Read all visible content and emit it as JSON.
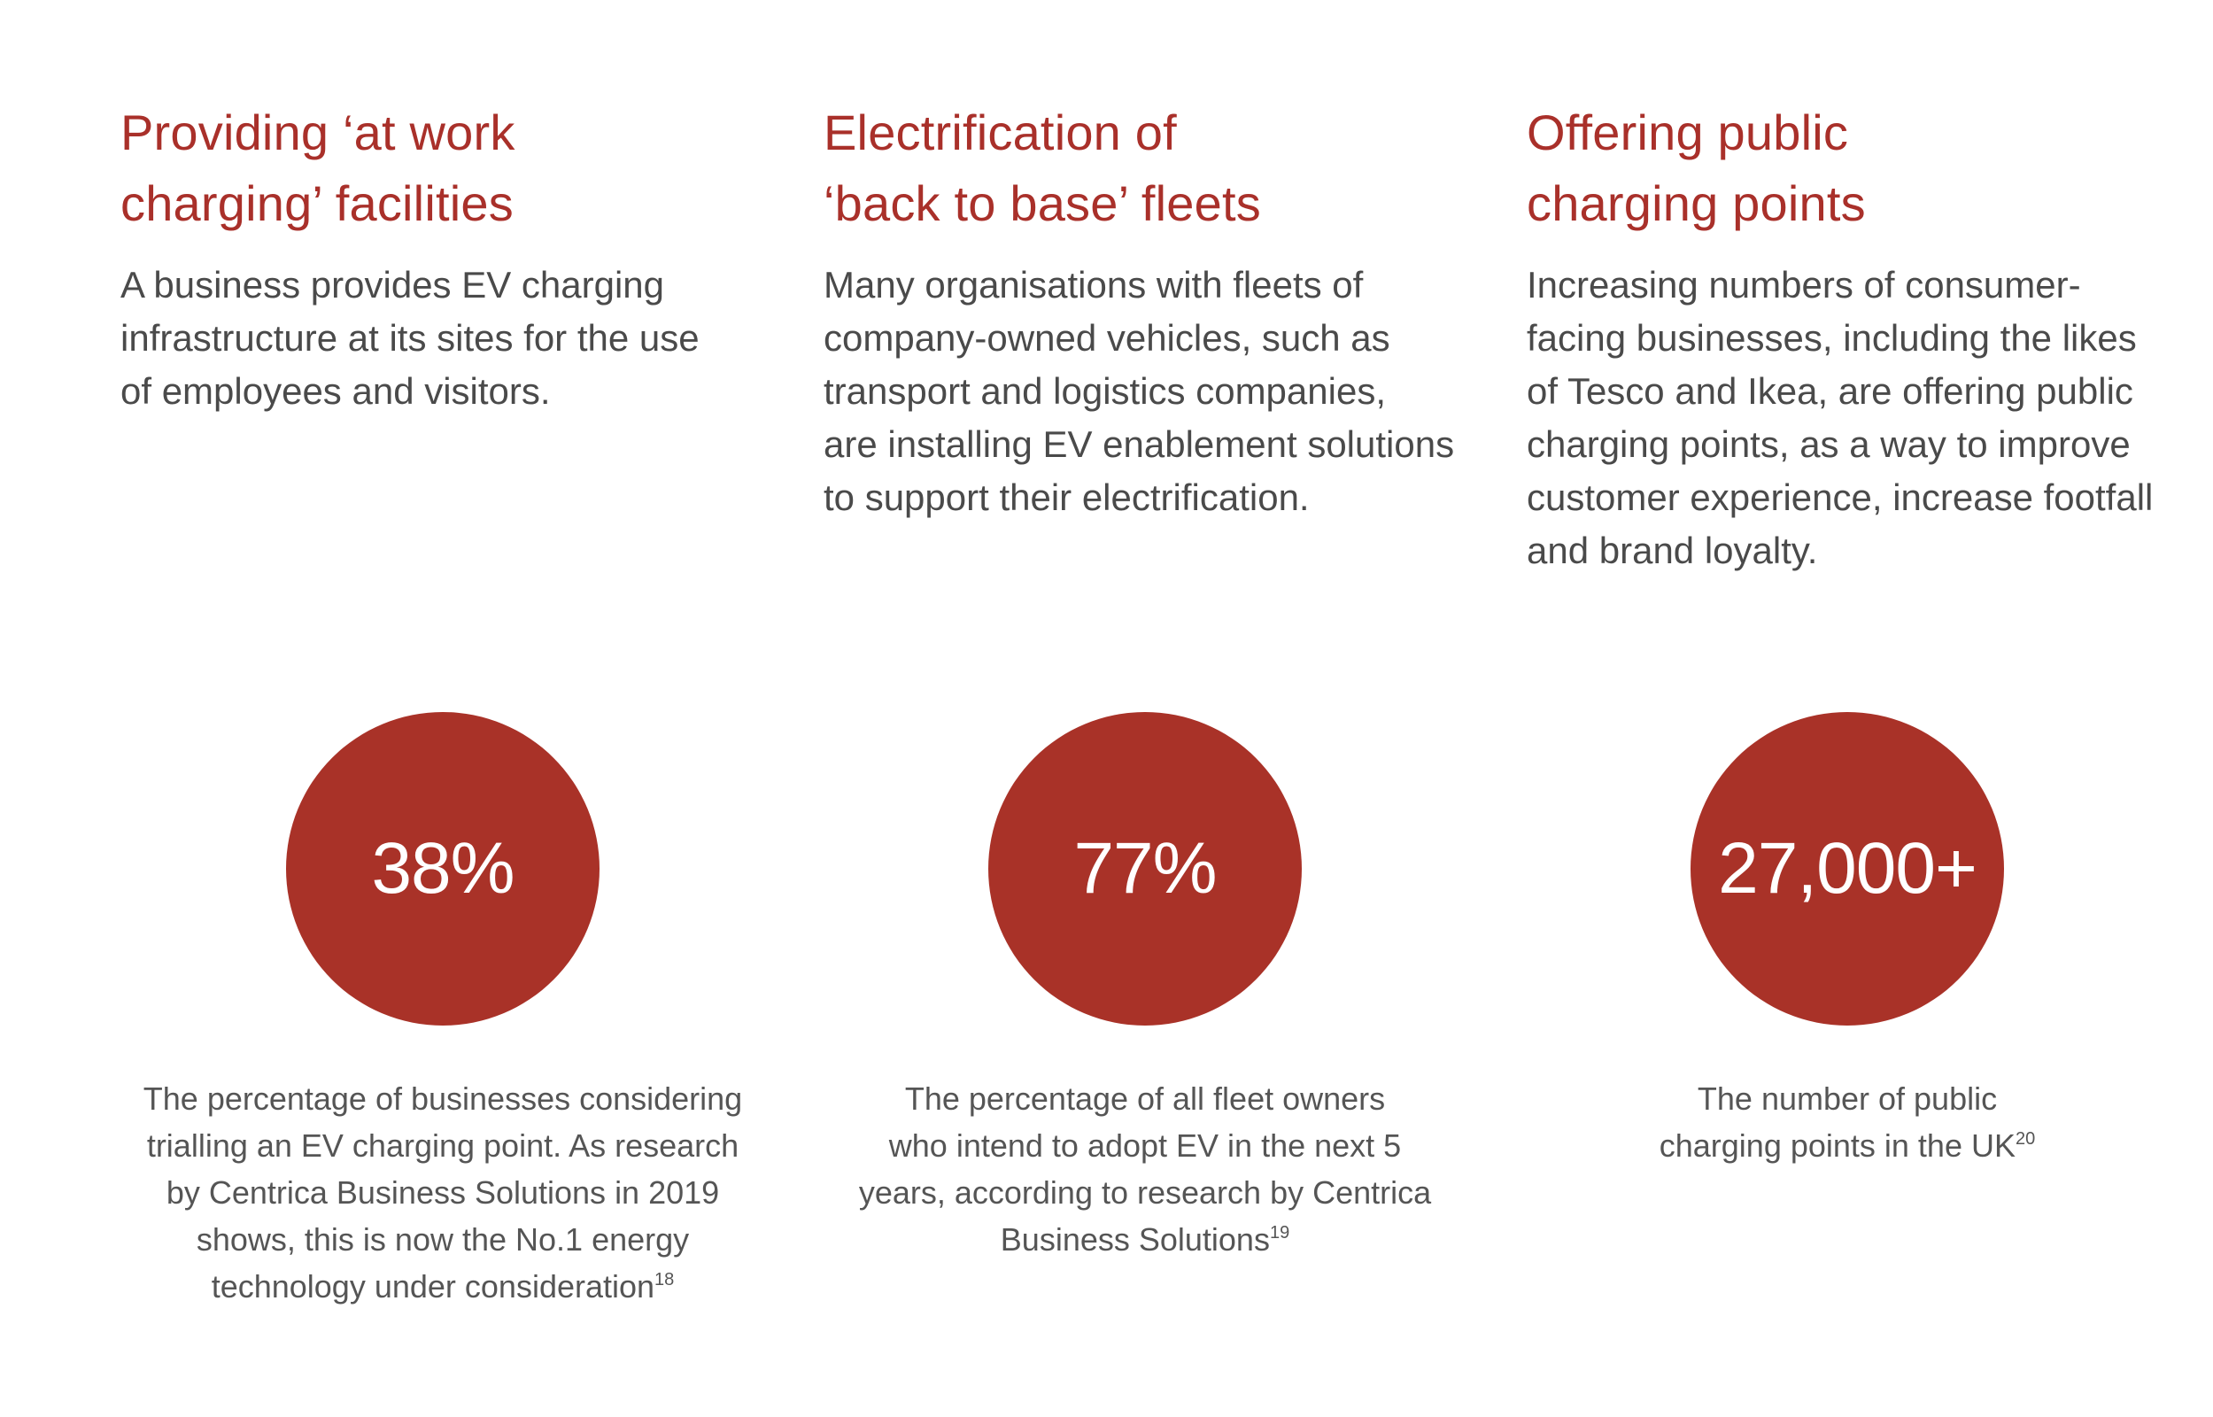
{
  "colors": {
    "accent": "#a9302a",
    "body_text": "#4a4a4a",
    "caption_text": "#555555",
    "circle_fill": "#a93228",
    "circle_text": "#ffffff"
  },
  "columns": [
    {
      "heading": [
        "Providing ‘at work",
        "charging’ facilities"
      ],
      "body": [
        "A business provides EV charging",
        "infrastructure at its sites for the use",
        "of employees and visitors."
      ]
    },
    {
      "heading": [
        "Electrification of",
        "‘back to base’ fleets"
      ],
      "body": [
        "Many organisations with fleets of",
        "company-owned vehicles, such as",
        "transport and logistics companies,",
        "are installing EV enablement solutions",
        "to support their electrification."
      ]
    },
    {
      "heading": [
        "Offering public",
        "charging points"
      ],
      "body": [
        "Increasing numbers of consumer-",
        "facing businesses, including the likes",
        "of Tesco and Ikea, are offering public",
        "charging points, as a way to improve",
        "customer experience, increase footfall",
        "and brand loyalty."
      ]
    }
  ],
  "stats": [
    {
      "value": "38%",
      "caption": [
        "The percentage of businesses considering",
        "trialling an EV charging point. As research",
        "by Centrica Business Solutions in 2019",
        "shows, this is now the No.1 energy",
        "technology under consideration"
      ],
      "footnote": "18"
    },
    {
      "value": "77%",
      "caption": [
        "The percentage of all fleet owners",
        "who intend to adopt EV in the next 5",
        "years, according to research by Centrica",
        "Business Solutions"
      ],
      "footnote": "19"
    },
    {
      "value": "27,000+",
      "caption": [
        "The number of public",
        "charging points in the UK"
      ],
      "footnote": "20"
    }
  ]
}
